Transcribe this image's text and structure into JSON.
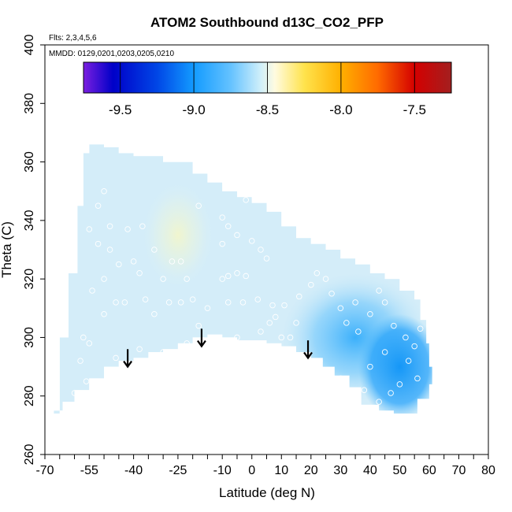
{
  "chart_data": {
    "type": "heatmap",
    "title": "ATOM2 Southbound d13C_CO2_PFP",
    "xlabel": "Latitude (deg N)",
    "ylabel": "Theta (C)",
    "xlim": [
      -70,
      80
    ],
    "ylim": [
      260,
      400
    ],
    "x_ticks": [
      -70,
      -65,
      -60,
      -55,
      -50,
      -45,
      -40,
      -35,
      -30,
      -25,
      -20,
      -15,
      -10,
      -5,
      0,
      5,
      10,
      15,
      20,
      25,
      30,
      35,
      40,
      45,
      50,
      55,
      60,
      65,
      70,
      75,
      80
    ],
    "x_tick_labels": [
      {
        "value": -70,
        "label": "-70"
      },
      {
        "value": -55,
        "label": "-55"
      },
      {
        "value": -40,
        "label": "-40"
      },
      {
        "value": -25,
        "label": "-25"
      },
      {
        "value": -10,
        "label": "-10"
      },
      {
        "value": 0,
        "label": "0"
      },
      {
        "value": 10,
        "label": "10"
      },
      {
        "value": 20,
        "label": "20"
      },
      {
        "value": 30,
        "label": "30"
      },
      {
        "value": 40,
        "label": "40"
      },
      {
        "value": 50,
        "label": "50"
      },
      {
        "value": 60,
        "label": "60"
      },
      {
        "value": 70,
        "label": "70"
      },
      {
        "value": 80,
        "label": "80"
      }
    ],
    "y_ticks": [
      {
        "value": 260,
        "label": "260"
      },
      {
        "value": 280,
        "label": "280"
      },
      {
        "value": 300,
        "label": "300"
      },
      {
        "value": 320,
        "label": "320"
      },
      {
        "value": 340,
        "label": "340"
      },
      {
        "value": 360,
        "label": "360"
      },
      {
        "value": 380,
        "label": "380"
      },
      {
        "value": 400,
        "label": "400"
      }
    ],
    "annotations": {
      "flights": "Flts: 2,3,4,5,6",
      "dates": "MMDD: 0129,0201,0203,0205,0210"
    },
    "colorbar": {
      "range": [
        -9.75,
        -7.25
      ],
      "ticks": [
        {
          "value": -9.5,
          "label": "-9.5"
        },
        {
          "value": -9.0,
          "label": "-9.0"
        },
        {
          "value": -8.5,
          "label": "-8.5"
        },
        {
          "value": -8.0,
          "label": "-8.0"
        },
        {
          "value": -7.5,
          "label": "-7.5"
        }
      ],
      "stops": [
        {
          "value": -9.75,
          "color": "#7b1fe0"
        },
        {
          "value": -9.55,
          "color": "#0000c8"
        },
        {
          "value": -9.25,
          "color": "#0046e6"
        },
        {
          "value": -9.0,
          "color": "#139bff"
        },
        {
          "value": -8.75,
          "color": "#64c2ff"
        },
        {
          "value": -8.55,
          "color": "#cdeefa"
        },
        {
          "value": -8.45,
          "color": "#fffbe0"
        },
        {
          "value": -8.25,
          "color": "#ffe34d"
        },
        {
          "value": -8.0,
          "color": "#ffb000"
        },
        {
          "value": -7.75,
          "color": "#ff6a00"
        },
        {
          "value": -7.5,
          "color": "#d40000"
        },
        {
          "value": -7.25,
          "color": "#a31f1f"
        }
      ]
    },
    "field_boundary": {
      "upper": [
        [
          -67,
          274
        ],
        [
          -65,
          300
        ],
        [
          -62,
          322
        ],
        [
          -59,
          345
        ],
        [
          -57,
          363
        ],
        [
          -55,
          366
        ],
        [
          -50,
          365
        ],
        [
          -45,
          363
        ],
        [
          -40,
          362
        ],
        [
          -30,
          360
        ],
        [
          -20,
          356
        ],
        [
          -15,
          353
        ],
        [
          -10,
          350
        ],
        [
          -5,
          348
        ],
        [
          0,
          346
        ],
        [
          5,
          343
        ],
        [
          10,
          338
        ],
        [
          15,
          334
        ],
        [
          20,
          332
        ],
        [
          25,
          330
        ],
        [
          30,
          327
        ],
        [
          35,
          325
        ],
        [
          40,
          322
        ],
        [
          45,
          320
        ],
        [
          50,
          316
        ],
        [
          55,
          313
        ],
        [
          57,
          306
        ],
        [
          59,
          298
        ],
        [
          60,
          290
        ],
        [
          61,
          284
        ]
      ],
      "lower": [
        [
          61,
          284
        ],
        [
          60,
          279
        ],
        [
          56,
          274
        ],
        [
          52,
          274
        ],
        [
          48,
          275
        ],
        [
          43,
          277
        ],
        [
          37,
          283
        ],
        [
          33,
          287
        ],
        [
          28,
          290
        ],
        [
          24,
          293
        ],
        [
          20,
          295
        ],
        [
          15,
          297
        ],
        [
          10,
          298
        ],
        [
          5,
          299
        ],
        [
          0,
          299
        ],
        [
          -5,
          300
        ],
        [
          -10,
          301
        ],
        [
          -15,
          300
        ],
        [
          -20,
          298
        ],
        [
          -25,
          296
        ],
        [
          -30,
          295
        ],
        [
          -35,
          293
        ],
        [
          -40,
          292
        ],
        [
          -45,
          290
        ],
        [
          -50,
          286
        ],
        [
          -55,
          282
        ],
        [
          -60,
          278
        ],
        [
          -64,
          275
        ],
        [
          -67,
          274
        ]
      ]
    },
    "field_zones": [
      {
        "name": "background",
        "value": -8.62
      },
      {
        "name": "south-pale",
        "lat": -25,
        "theta": 335,
        "rx": 12,
        "ry": 18,
        "value": -8.4
      },
      {
        "name": "north-mid",
        "lat": 35,
        "theta": 300,
        "rx": 25,
        "ry": 22,
        "value": -8.85
      },
      {
        "name": "north-deep",
        "lat": 50,
        "theta": 290,
        "rx": 14,
        "ry": 18,
        "value": -9.0
      }
    ],
    "arrows": [
      {
        "lat": -42,
        "theta_top": 296,
        "theta_bottom": 290
      },
      {
        "lat": -17,
        "theta_top": 303,
        "theta_bottom": 297
      },
      {
        "lat": 19,
        "theta_top": 299,
        "theta_bottom": 293
      }
    ],
    "samples": [
      [
        -50,
        350
      ],
      [
        -52,
        345
      ],
      [
        -48,
        338
      ],
      [
        -55,
        337
      ],
      [
        -52,
        332
      ],
      [
        -42,
        337
      ],
      [
        -48,
        330
      ],
      [
        -37,
        338
      ],
      [
        -33,
        330
      ],
      [
        -30,
        320
      ],
      [
        -27,
        326
      ],
      [
        -24,
        326
      ],
      [
        -22,
        320
      ],
      [
        -18,
        345
      ],
      [
        -45,
        325
      ],
      [
        -40,
        326
      ],
      [
        -38,
        322
      ],
      [
        -50,
        320
      ],
      [
        -54,
        316
      ],
      [
        -50,
        308
      ],
      [
        -46,
        312
      ],
      [
        -43,
        312
      ],
      [
        -36,
        313
      ],
      [
        -33,
        308
      ],
      [
        -28,
        312
      ],
      [
        -24,
        312
      ],
      [
        -20,
        313
      ],
      [
        -57,
        300
      ],
      [
        -55,
        298
      ],
      [
        -58,
        292
      ],
      [
        -56,
        285
      ],
      [
        -60,
        281
      ],
      [
        -46,
        293
      ],
      [
        -38,
        296
      ],
      [
        -30,
        295
      ],
      [
        -22,
        298
      ],
      [
        -18,
        304
      ],
      [
        -15,
        310
      ],
      [
        -10,
        320
      ],
      [
        -8,
        321
      ],
      [
        -5,
        322
      ],
      [
        -2,
        321
      ],
      [
        -10,
        341
      ],
      [
        -8,
        338
      ],
      [
        -5,
        335
      ],
      [
        -10,
        332
      ],
      [
        0,
        333
      ],
      [
        3,
        330
      ],
      [
        5,
        327
      ],
      [
        -2,
        347
      ],
      [
        0,
        349
      ],
      [
        -8,
        312
      ],
      [
        -3,
        312
      ],
      [
        2,
        313
      ],
      [
        7,
        311
      ],
      [
        8,
        307
      ],
      [
        10,
        300
      ],
      [
        6,
        305
      ],
      [
        3,
        302
      ],
      [
        -5,
        300
      ],
      [
        16,
        314
      ],
      [
        20,
        318
      ],
      [
        22,
        322
      ],
      [
        25,
        320
      ],
      [
        27,
        315
      ],
      [
        30,
        310
      ],
      [
        32,
        305
      ],
      [
        36,
        302
      ],
      [
        35,
        312
      ],
      [
        40,
        308
      ],
      [
        43,
        316
      ],
      [
        45,
        312
      ],
      [
        48,
        304
      ],
      [
        52,
        300
      ],
      [
        55,
        297
      ],
      [
        57,
        303
      ],
      [
        53,
        292
      ],
      [
        56,
        286
      ],
      [
        50,
        284
      ],
      [
        47,
        281
      ],
      [
        43,
        278
      ],
      [
        38,
        282
      ],
      [
        40,
        290
      ],
      [
        45,
        295
      ],
      [
        30,
        286
      ],
      [
        23,
        292
      ],
      [
        19,
        294
      ],
      [
        13,
        300
      ],
      [
        15,
        305
      ],
      [
        11,
        311
      ]
    ]
  }
}
